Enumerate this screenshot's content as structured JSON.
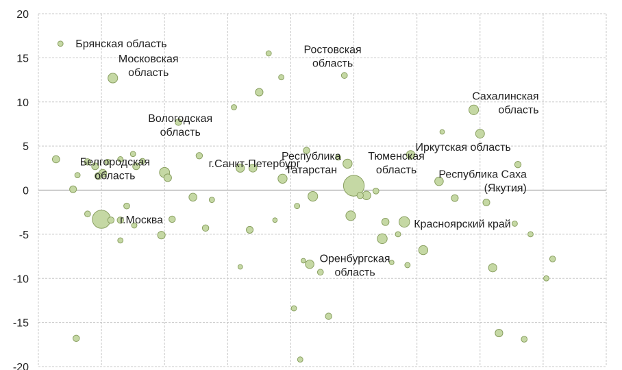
{
  "chart_data": {
    "type": "scatter",
    "title": "",
    "xlabel": "",
    "ylabel": "",
    "xlim": [
      0,
      9
    ],
    "ylim": [
      -20,
      20
    ],
    "x_ticks": [],
    "y_ticks": [
      20,
      15,
      10,
      5,
      0,
      -5,
      -10,
      -15,
      -20
    ],
    "y_tick_labels": [
      "20",
      "15",
      "10",
      "5",
      "0",
      "-5",
      "-10",
      "-15",
      "-20"
    ],
    "grid": true,
    "legend": "none",
    "colors": {
      "fill": "#c5d8a4",
      "stroke": "#8aa062",
      "grid": "#c8c8c8",
      "axis": "#a6a6a6"
    },
    "points": [
      {
        "x": 0.35,
        "y": 16.6,
        "size": 2,
        "label": "Брянская область"
      },
      {
        "x": 1.18,
        "y": 12.7,
        "size": 14,
        "label": "Московская область"
      },
      {
        "x": 0.78,
        "y": 3.2,
        "size": 4,
        "label": "Белгородская область"
      },
      {
        "x": 1.0,
        "y": -3.3,
        "size": 70,
        "label": "г.Москва"
      },
      {
        "x": 2.0,
        "y": 2.0,
        "size": 16,
        "label": "Вологодская область"
      },
      {
        "x": 3.85,
        "y": 12.8,
        "size": 2,
        "label": "Ростовская область"
      },
      {
        "x": 3.87,
        "y": 1.3,
        "size": 12,
        "label": "г.Санкт-Петербург"
      },
      {
        "x": 4.9,
        "y": 3.0,
        "size": 12,
        "label": "Республика Татарстан"
      },
      {
        "x": 5.0,
        "y": 0.5,
        "size": 95,
        "label": "Тюменская область"
      },
      {
        "x": 5.9,
        "y": 4.0,
        "size": 10,
        "label": "Иркутская область"
      },
      {
        "x": 6.9,
        "y": 9.1,
        "size": 14,
        "label": "Сахалинская область"
      },
      {
        "x": 6.35,
        "y": 1.0,
        "size": 10,
        "label": "Республика Саха (Якутия)"
      },
      {
        "x": 5.8,
        "y": -3.6,
        "size": 18,
        "label": "Красноярский край"
      },
      {
        "x": 4.3,
        "y": -8.4,
        "size": 10,
        "label": "Оренбургская область"
      },
      {
        "x": 0.28,
        "y": 3.5,
        "size": 6
      },
      {
        "x": 0.55,
        "y": 0.1,
        "size": 5
      },
      {
        "x": 0.62,
        "y": 1.7,
        "size": 2
      },
      {
        "x": 0.9,
        "y": 2.7,
        "size": 5
      },
      {
        "x": 1.02,
        "y": 1.9,
        "size": 8
      },
      {
        "x": 1.1,
        "y": 3.2,
        "size": 2
      },
      {
        "x": 0.95,
        "y": 1.6,
        "size": 5
      },
      {
        "x": 0.78,
        "y": -2.7,
        "size": 3
      },
      {
        "x": 1.15,
        "y": -3.4,
        "size": 4
      },
      {
        "x": 1.3,
        "y": -3.4,
        "size": 4
      },
      {
        "x": 1.4,
        "y": -1.8,
        "size": 3
      },
      {
        "x": 1.5,
        "y": 4.1,
        "size": 2
      },
      {
        "x": 1.55,
        "y": 2.7,
        "size": 5
      },
      {
        "x": 1.65,
        "y": 3.3,
        "size": 2
      },
      {
        "x": 1.3,
        "y": 3.5,
        "size": 2
      },
      {
        "x": 1.3,
        "y": -5.7,
        "size": 2
      },
      {
        "x": 1.52,
        "y": -4.0,
        "size": 2
      },
      {
        "x": 1.95,
        "y": -5.1,
        "size": 7
      },
      {
        "x": 2.05,
        "y": 1.4,
        "size": 7
      },
      {
        "x": 2.12,
        "y": -3.3,
        "size": 4
      },
      {
        "x": 2.22,
        "y": 7.7,
        "size": 4
      },
      {
        "x": 2.45,
        "y": -0.8,
        "size": 8
      },
      {
        "x": 2.55,
        "y": 3.9,
        "size": 4
      },
      {
        "x": 2.65,
        "y": -4.3,
        "size": 4
      },
      {
        "x": 2.75,
        "y": -1.1,
        "size": 2
      },
      {
        "x": 0.6,
        "y": -16.8,
        "size": 4
      },
      {
        "x": 3.1,
        "y": 9.4,
        "size": 2
      },
      {
        "x": 3.2,
        "y": 2.5,
        "size": 9
      },
      {
        "x": 3.35,
        "y": -4.5,
        "size": 5
      },
      {
        "x": 3.4,
        "y": 2.5,
        "size": 8
      },
      {
        "x": 3.5,
        "y": 11.1,
        "size": 7
      },
      {
        "x": 3.65,
        "y": 15.5,
        "size": 2
      },
      {
        "x": 3.75,
        "y": -3.4,
        "size": 1
      },
      {
        "x": 3.2,
        "y": -8.7,
        "size": 1
      },
      {
        "x": 4.1,
        "y": -1.8,
        "size": 2
      },
      {
        "x": 4.25,
        "y": 4.5,
        "size": 4
      },
      {
        "x": 4.35,
        "y": -0.7,
        "size": 14
      },
      {
        "x": 4.47,
        "y": -9.3,
        "size": 3
      },
      {
        "x": 4.6,
        "y": -14.3,
        "size": 4
      },
      {
        "x": 4.2,
        "y": -8.0,
        "size": 1
      },
      {
        "x": 4.05,
        "y": -13.4,
        "size": 2
      },
      {
        "x": 4.15,
        "y": -19.2,
        "size": 2
      },
      {
        "x": 4.75,
        "y": 3.7,
        "size": 2
      },
      {
        "x": 4.85,
        "y": 13.0,
        "size": 3
      },
      {
        "x": 4.95,
        "y": -2.9,
        "size": 14
      },
      {
        "x": 5.2,
        "y": -0.6,
        "size": 10
      },
      {
        "x": 5.1,
        "y": -0.6,
        "size": 4
      },
      {
        "x": 5.35,
        "y": -0.1,
        "size": 3
      },
      {
        "x": 5.45,
        "y": -5.5,
        "size": 15
      },
      {
        "x": 5.5,
        "y": -3.6,
        "size": 6
      },
      {
        "x": 5.6,
        "y": -8.2,
        "size": 1
      },
      {
        "x": 5.7,
        "y": -5.0,
        "size": 2
      },
      {
        "x": 5.85,
        "y": -8.5,
        "size": 2
      },
      {
        "x": 6.1,
        "y": -6.8,
        "size": 12
      },
      {
        "x": 6.4,
        "y": 6.6,
        "size": 1
      },
      {
        "x": 6.6,
        "y": -0.9,
        "size": 5
      },
      {
        "x": 7.0,
        "y": 6.4,
        "size": 11
      },
      {
        "x": 7.1,
        "y": -1.4,
        "size": 5
      },
      {
        "x": 7.2,
        "y": -8.8,
        "size": 9
      },
      {
        "x": 7.3,
        "y": -16.2,
        "size": 7
      },
      {
        "x": 7.6,
        "y": 2.9,
        "size": 4
      },
      {
        "x": 7.7,
        "y": -16.9,
        "size": 3
      },
      {
        "x": 7.55,
        "y": -3.8,
        "size": 2
      },
      {
        "x": 7.8,
        "y": -5.0,
        "size": 2
      },
      {
        "x": 8.05,
        "y": -10.0,
        "size": 2
      },
      {
        "x": 8.15,
        "y": -7.8,
        "size": 3
      }
    ]
  }
}
